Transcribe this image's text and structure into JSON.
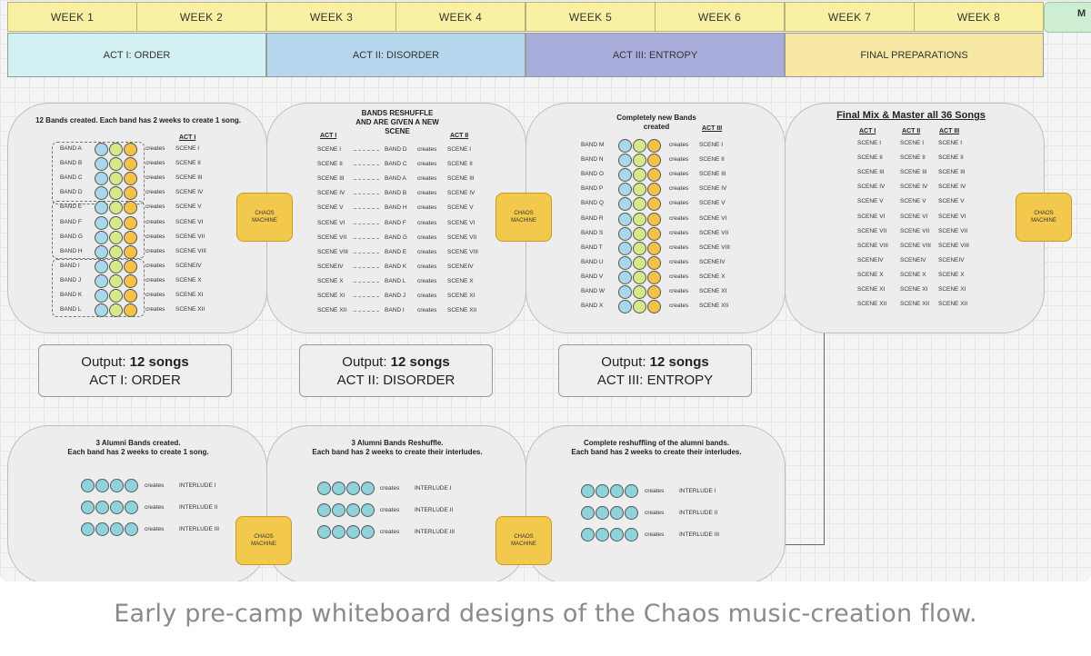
{
  "weeks": [
    "WEEK 1",
    "WEEK 2",
    "WEEK 3",
    "WEEK 4",
    "WEEK 5",
    "WEEK 6",
    "WEEK 7",
    "WEEK 8"
  ],
  "week_extra": "M",
  "acts": [
    {
      "label": "ACT I: ORDER",
      "color": "#d3f1f3"
    },
    {
      "label": "ACT II: DISORDER",
      "color": "#b6d6ee"
    },
    {
      "label": "ACT III: ENTROPY",
      "color": "#a9addc"
    },
    {
      "label": "FINAL PREPARATIONS",
      "color": "#f6e8a3"
    }
  ],
  "panel1": {
    "title": "12 Bands created. Each band has 2 weeks to create 1 song.",
    "col_head": "ACT I",
    "bands": [
      "BAND A",
      "BAND B",
      "BAND C",
      "BAND D",
      "BAND E",
      "BAND F",
      "BAND G",
      "BAND H",
      "BAND I",
      "BAND J",
      "BAND K",
      "BAND L"
    ],
    "scenes": [
      "SCENE I",
      "SCENE II",
      "SCENE III",
      "SCENE IV",
      "SCENE V",
      "SCENE VI",
      "SCENE VII",
      "SCENE VIII",
      "SCENEIV",
      "SCENE X",
      "SCENE XI",
      "SCENE XII"
    ]
  },
  "panel2": {
    "title_lines": [
      "BANDS RESHUFFLE",
      "AND ARE GIVEN A NEW",
      "SCENE"
    ],
    "col_head_left": "ACT I",
    "col_head_right": "ACT II",
    "left_scenes": [
      "SCENE I",
      "SCENE II",
      "SCENE III",
      "SCENE IV",
      "SCENE V",
      "SCENE VI",
      "SCENE VII",
      "SCENE VIII",
      "SCENEIV",
      "SCENE X",
      "SCENE XI",
      "SCENE XII"
    ],
    "bands": [
      "BAND D",
      "BAND C",
      "BAND A",
      "BAND B",
      "BAND H",
      "BAND F",
      "BAND G",
      "BAND E",
      "BAND K",
      "BAND L",
      "BAND J",
      "BAND I"
    ],
    "right_scenes": [
      "SCENE I",
      "SCENE II",
      "SCENE III",
      "SCENE IV",
      "SCENE V",
      "SCENE VI",
      "SCENE VII",
      "SCENE VIII",
      "SCENEIV",
      "SCENE X",
      "SCENE XI",
      "SCENE XII"
    ]
  },
  "panel3": {
    "title_lines": [
      "Completely new Bands",
      "created"
    ],
    "col_head": "ACT III",
    "bands": [
      "BAND M",
      "BAND N",
      "BAND O",
      "BAND P",
      "BAND Q",
      "BAND R",
      "BAND S",
      "BAND T",
      "BAND U",
      "BAND V",
      "BAND W",
      "BAND X"
    ],
    "scenes": [
      "SCENE I",
      "SCENE II",
      "SCENE III",
      "SCENE IV",
      "SCENE V",
      "SCENE VI",
      "SCENE VII",
      "SCENE VIII",
      "SCENEIV",
      "SCENE X",
      "SCENE XI",
      "SCENE XII"
    ]
  },
  "panel4": {
    "title": "Final Mix & Master all 36 Songs",
    "col_heads": [
      "ACT I",
      "ACT II",
      "ACT III"
    ],
    "act1": [
      "SCENE I",
      "SCENE II",
      "SCENE III",
      "SCENE IV",
      "SCENE V",
      "SCENE VI",
      "SCENE VII",
      "SCENE VIII",
      "SCENEIV",
      "SCENE X",
      "SCENE XI",
      "SCENE XII"
    ],
    "act2": [
      "SCENE I",
      "SCENE II",
      "SCENE III",
      "SCENE IV",
      "SCENE V",
      "SCENE VI",
      "SCENE VII",
      "SCENE VIII",
      "SCENEIV",
      "SCENE X",
      "SCENE XI",
      "SCENE XII"
    ],
    "act3": [
      "SCENE I",
      "SCENE II",
      "SCENE III",
      "SCENE IV",
      "SCENE V",
      "SCENE VI",
      "SCENE VII",
      "SCENE VIII",
      "SCENEIV",
      "SCENE X",
      "SCENE XI",
      "SCENE XII"
    ]
  },
  "creates_word": "creates",
  "chaos_machine": {
    "line1": "CHAOS",
    "line2": "MACHINE"
  },
  "outputs": [
    {
      "prefix": "Output:",
      "count": "12 songs",
      "act": "ACT I: ORDER"
    },
    {
      "prefix": "Output:",
      "count": "12 songs",
      "act": "ACT II: DISORDER"
    },
    {
      "prefix": "Output:",
      "count": "12 songs",
      "act": "ACT III: ENTROPY"
    }
  ],
  "alumni": [
    {
      "title_lines": [
        "3 Alumni Bands created.",
        "Each band has 2 weeks to create 1 song."
      ],
      "interludes": [
        "INTERLUDE I",
        "INTERLUDE II",
        "INTERLUDE III"
      ]
    },
    {
      "title_lines": [
        "3 Alumni Bands Reshuffle.",
        "Each band has 2 weeks to create their interludes."
      ],
      "interludes": [
        "INTERLUDE I",
        "INTERLUDE II",
        "INTERLUDE III"
      ]
    },
    {
      "title_lines": [
        "Complete reshuffling of the alumni bands.",
        "Each band has 2 weeks to create their interludes."
      ],
      "interludes": [
        "INTERLUDE I",
        "INTERLUDE II",
        "INTERLUDE III"
      ]
    }
  ],
  "caption": "Early pre-camp whiteboard designs of the Chaos music-creation flow."
}
